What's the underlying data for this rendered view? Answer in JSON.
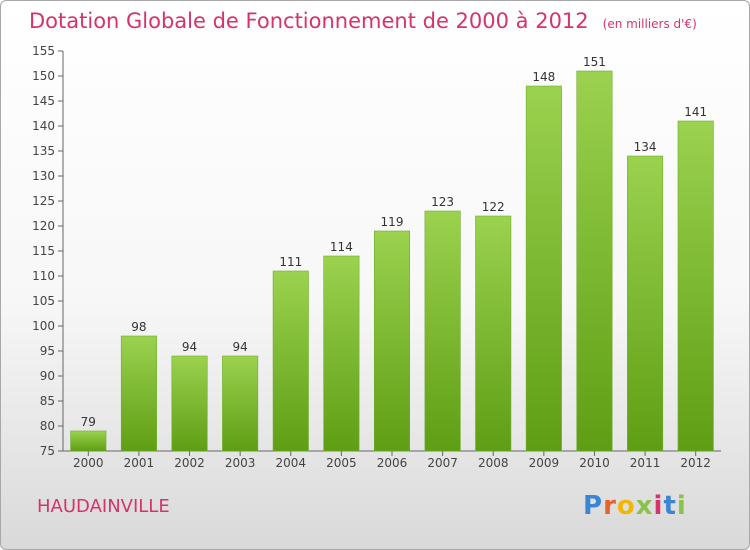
{
  "title": {
    "main": "Dotation Globale de Fonctionnement de 2000 à 2012",
    "unit": "(en milliers d'€)"
  },
  "commune": "HAUDAINVILLE",
  "logo": {
    "letters": [
      "P",
      "r",
      "o",
      "x",
      "i",
      "t",
      "i"
    ],
    "colors": [
      "#3a86d4",
      "#e7632a",
      "#f2b705",
      "#8bc34a",
      "#d6336c",
      "#3a86d4",
      "#8bc34a"
    ]
  },
  "colors": {
    "bar_top": "#9bd24f",
    "bar_bottom": "#5e9e14",
    "accent": "#d6336c"
  },
  "chart_data": {
    "type": "bar",
    "categories": [
      "2000",
      "2001",
      "2002",
      "2003",
      "2004",
      "2005",
      "2006",
      "2007",
      "2008",
      "2009",
      "2010",
      "2011",
      "2012"
    ],
    "values": [
      79,
      98,
      94,
      94,
      111,
      114,
      119,
      123,
      122,
      148,
      151,
      134,
      141
    ],
    "ylim": [
      75,
      155
    ],
    "yticks": [
      75,
      80,
      85,
      90,
      95,
      100,
      105,
      110,
      115,
      120,
      125,
      130,
      135,
      140,
      145,
      150,
      155
    ],
    "grid": false
  }
}
